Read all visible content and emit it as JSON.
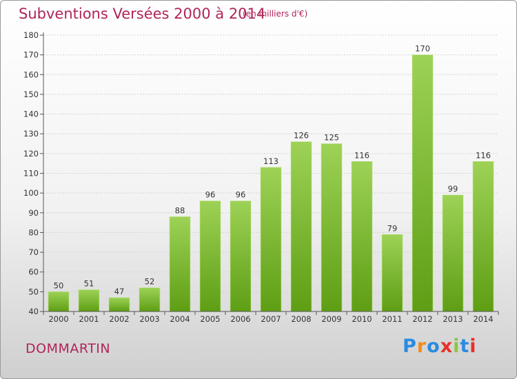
{
  "header": {
    "title": "Subventions Versées 2000 à 2014",
    "subtitle": "(en milliers d'€)"
  },
  "footer": {
    "town": "DOMMARTIN",
    "logo": "Proxiti"
  },
  "colors": {
    "title": "#b0245a",
    "bar_top": "#9dd256",
    "bar_bottom": "#5e9e14",
    "logo_letters": [
      "#2a8be0",
      "#f28c1c",
      "#2a8be0",
      "#e8302a",
      "#8cc63f",
      "#2a8be0",
      "#e8302a"
    ]
  },
  "chart_data": {
    "type": "bar",
    "title": "Subventions Versées 2000 à 2014",
    "subtitle": "(en milliers d'€)",
    "categories": [
      "2000",
      "2001",
      "2002",
      "2003",
      "2004",
      "2005",
      "2006",
      "2007",
      "2008",
      "2009",
      "2010",
      "2011",
      "2012",
      "2013",
      "2014"
    ],
    "values": [
      50,
      51,
      47,
      52,
      88,
      96,
      96,
      113,
      126,
      125,
      116,
      79,
      170,
      99,
      116
    ],
    "ylim": [
      40,
      180
    ],
    "yticks": [
      40,
      50,
      60,
      70,
      80,
      90,
      100,
      110,
      120,
      130,
      140,
      150,
      160,
      170,
      180
    ],
    "grid": true,
    "legend": "none"
  }
}
